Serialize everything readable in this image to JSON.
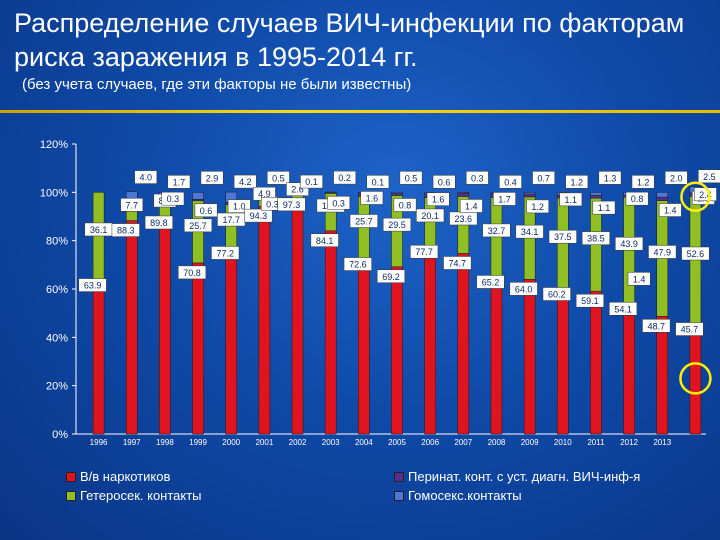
{
  "header": {
    "title": "Распределение случаев ВИЧ-инфекции по факторам риска заражения в 1995-2014 гг.",
    "subtitle": "(без учета случаев, где эти факторы не были известны)"
  },
  "colors": {
    "drugs": "#e0141e",
    "hetero": "#8fbf22",
    "perinatal": "#5a2d8c",
    "gay": "#4a78d8",
    "label_bg": "#ffffff",
    "circle": "#ffef00",
    "rule": "#ffd81a"
  },
  "chart_data": {
    "type": "bar",
    "stacked": true,
    "categories": [
      "1996",
      "1997",
      "1998",
      "1999",
      "2000",
      "2001",
      "2002",
      "2003",
      "2004",
      "2005",
      "2006",
      "2007",
      "2008",
      "2009",
      "2010",
      "2011",
      "2012",
      "2013",
      ""
    ],
    "ylim": [
      0,
      120
    ],
    "yticks": [
      "0%",
      "20%",
      "40%",
      "60%",
      "80%",
      "100%",
      "120%"
    ],
    "series": [
      {
        "name": "В/в наркотиков",
        "key": "drugs",
        "values": [
          63.9,
          88.3,
          89.8,
          70.8,
          77.2,
          94.3,
          97.3,
          84.1,
          72.6,
          69.2,
          77.7,
          74.7,
          65.2,
          64.0,
          60.2,
          59.1,
          54.1,
          48.7,
          45.7
        ],
        "labels": [
          "63.9",
          "88.3",
          "89.8",
          "70.8",
          "77.2",
          "94.3",
          "97.3",
          "84.1",
          "72.6",
          "69.2",
          "77.7",
          "74.7",
          "65.2",
          "64.0",
          "60.2",
          "59.1",
          "54.1",
          "48.7",
          "45.7"
        ]
      },
      {
        "name": "Гетеросек. контакты",
        "key": "hetero",
        "values": [
          36.1,
          7.7,
          8.2,
          25.7,
          17.7,
          4.9,
          2.6,
          15.5,
          25.7,
          29.5,
          20.1,
          23.6,
          32.7,
          34.1,
          37.5,
          38.5,
          43.9,
          47.9,
          52.6
        ],
        "labels": [
          "36.1",
          "7.7",
          "8.2",
          "25.7",
          "17.7",
          "4.9",
          "2.6",
          "15.5",
          "25.7",
          "29.5",
          "20.1",
          "23.6",
          "32.7",
          "34.1",
          "37.5",
          "38.5",
          "43.9",
          "47.9",
          "52.6"
        ]
      },
      {
        "name": "Перинат. конт. с уст. диагн. ВИЧ-инф-я",
        "key": "perinatal",
        "values": [
          0,
          0.3,
          0.3,
          0.6,
          1.0,
          0.3,
          0.1,
          0.3,
          1.6,
          0.8,
          1.6,
          1.4,
          1.7,
          1.2,
          1.1,
          1.1,
          0.8,
          1.4,
          1.5
        ],
        "labels": [
          "",
          "",
          "0.3",
          "0.6",
          "1.0",
          "0.3",
          "",
          "0.3",
          "1.6",
          "0.8",
          "1.6",
          "1.4",
          "1.7",
          "1.2",
          "1.1",
          "1.1",
          "0.8",
          "1.4",
          "1.5"
        ]
      },
      {
        "name": "Гомосекс.контакты",
        "key": "gay",
        "values": [
          0,
          4.0,
          1.7,
          2.9,
          4.2,
          0.5,
          0.1,
          0.2,
          0.1,
          0.5,
          0.6,
          0.3,
          0.4,
          0.7,
          1.2,
          1.3,
          1.2,
          2.0,
          2.5
        ],
        "labels": [
          "",
          "4.0",
          "1.7",
          "2.9",
          "4.2",
          "0.5",
          "0.1",
          "0.2",
          "0.1",
          "0.5",
          "0.6",
          "0.3",
          "0.4",
          "0.7",
          "1.2",
          "1.3",
          "1.2",
          "2.0",
          "2.5"
        ]
      }
    ],
    "extra_labels": [
      "2.4",
      "1.4"
    ],
    "legend": {
      "placement": "bottom"
    },
    "highlight_circles_on_last_column": true
  }
}
